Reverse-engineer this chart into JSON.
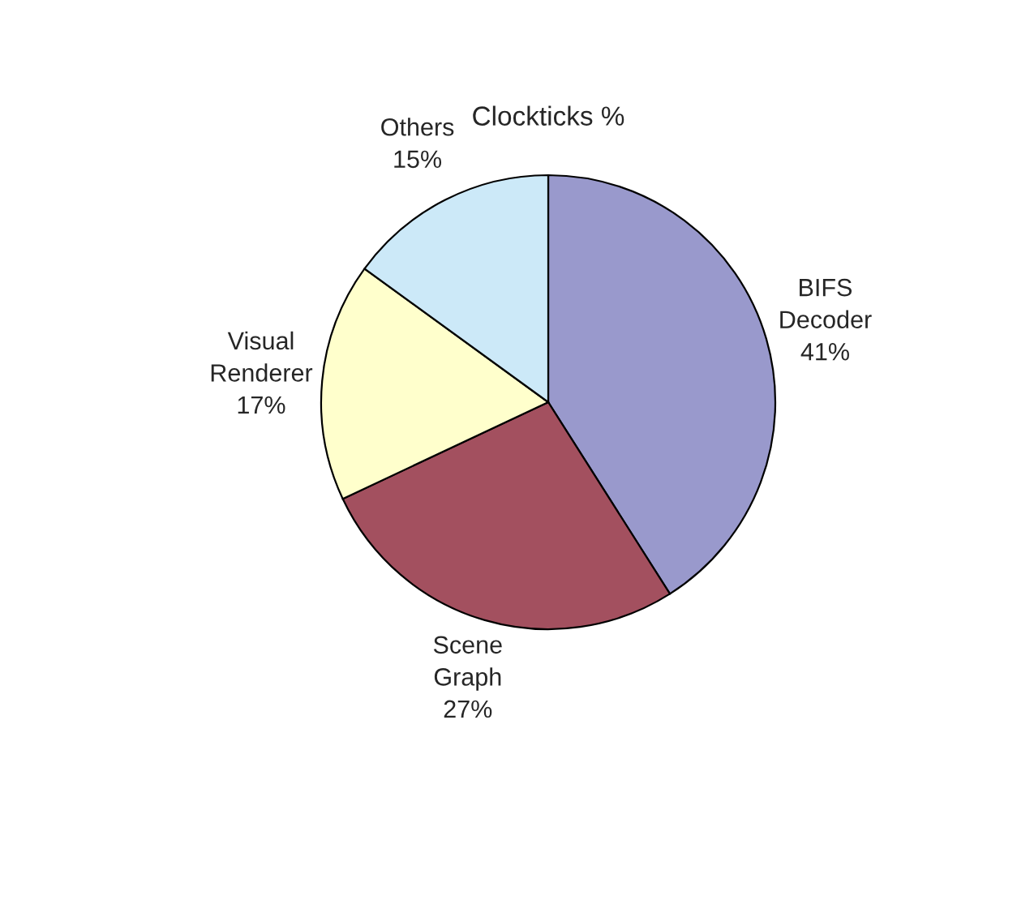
{
  "chart_data": {
    "type": "pie",
    "title": "Clockticks %",
    "categories": [
      "BIFS Decoder",
      "Scene Graph",
      "Visual Renderer",
      "Others"
    ],
    "values": [
      41,
      27,
      17,
      15
    ],
    "colors": [
      "#9999cc",
      "#a3505f",
      "#ffffcc",
      "#cce9f8"
    ],
    "value_labels": [
      "41%",
      "27%",
      "17%",
      "15%"
    ],
    "legend": false
  }
}
